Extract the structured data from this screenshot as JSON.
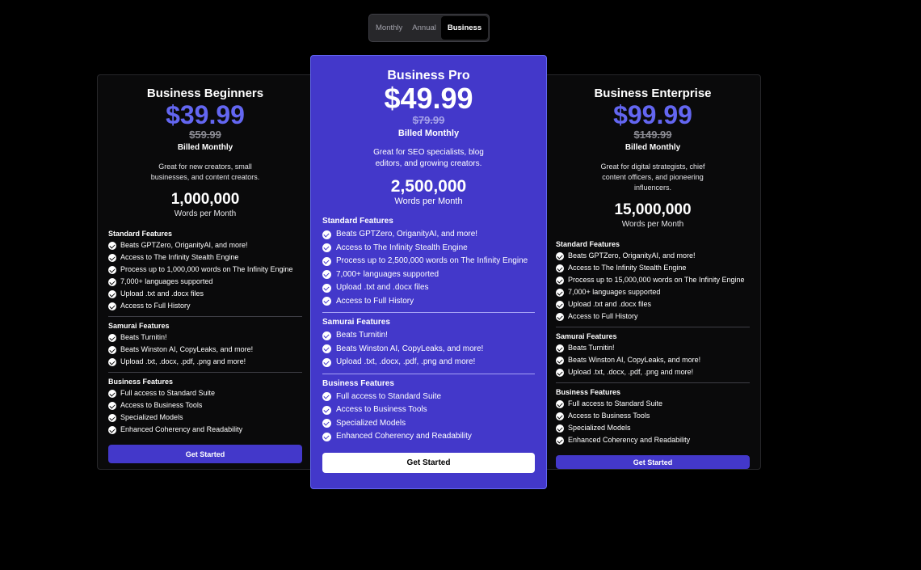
{
  "toggle": {
    "options": [
      "Monthly",
      "Annual",
      "Business"
    ],
    "selected": "Business"
  },
  "colors": {
    "accent": "#4338ca",
    "price": "#6366f1",
    "background": "#000000"
  },
  "plans": [
    {
      "name": "Business Beginners",
      "price": "$39.99",
      "old_price": "$59.99",
      "billing": "Billed Monthly",
      "description": "Great for new creators, small businesses, and content creators.",
      "words": "1,000,000",
      "words_label": "Words per Month",
      "sections": [
        {
          "title": "Standard Features",
          "items": [
            "Beats GPTZero, OriganityAI, and more!",
            "Access to The Infinity Stealth Engine",
            "Process up to 1,000,000 words on The Infinity Engine",
            "7,000+ languages supported",
            "Upload .txt and .docx files",
            "Access to Full History"
          ]
        },
        {
          "title": "Samurai Features",
          "items": [
            "Beats Turnitin!",
            "Beats Winston AI, CopyLeaks, and more!",
            "Upload .txt, .docx, .pdf, .png and more!"
          ]
        },
        {
          "title": "Business Features",
          "items": [
            "Full access to Standard Suite",
            "Access to Business Tools",
            "Specialized Models",
            "Enhanced Coherency and Readability"
          ]
        }
      ],
      "button": "Get Started"
    },
    {
      "name": "Business Pro",
      "price": "$49.99",
      "old_price": "$79.99",
      "billing": "Billed Monthly",
      "description": "Great for SEO specialists, blog editors, and growing creators.",
      "words": "2,500,000",
      "words_label": "Words per Month",
      "sections": [
        {
          "title": "Standard Features",
          "items": [
            "Beats GPTZero, OriganityAI, and more!",
            "Access to The Infinity Stealth Engine",
            "Process up to 2,500,000 words on The Infinity Engine",
            "7,000+ languages supported",
            "Upload .txt and .docx files",
            "Access to Full History"
          ]
        },
        {
          "title": "Samurai Features",
          "items": [
            "Beats Turnitin!",
            "Beats Winston AI, CopyLeaks, and more!",
            "Upload .txt, .docx, .pdf, .png and more!"
          ]
        },
        {
          "title": "Business Features",
          "items": [
            "Full access to Standard Suite",
            "Access to Business Tools",
            "Specialized Models",
            "Enhanced Coherency and Readability"
          ]
        }
      ],
      "button": "Get Started"
    },
    {
      "name": "Business Enterprise",
      "price": "$99.99",
      "old_price": "$149.99",
      "billing": "Billed Monthly",
      "description": "Great for digital strategists, chief content officers, and pioneering influencers.",
      "words": "15,000,000",
      "words_label": "Words per Month",
      "sections": [
        {
          "title": "Standard Features",
          "items": [
            "Beats GPTZero, OriganityAI, and more!",
            "Access to The Infinity Stealth Engine",
            "Process up to 15,000,000 words on The Infinity Engine",
            "7,000+ languages supported",
            "Upload .txt and .docx files",
            "Access to Full History"
          ]
        },
        {
          "title": "Samurai Features",
          "items": [
            "Beats Turnitin!",
            "Beats Winston AI, CopyLeaks, and more!",
            "Upload .txt, .docx, .pdf, .png and more!"
          ]
        },
        {
          "title": "Business Features",
          "items": [
            "Full access to Standard Suite",
            "Access to Business Tools",
            "Specialized Models",
            "Enhanced Coherency and Readability"
          ]
        }
      ],
      "button": "Get Started"
    }
  ]
}
